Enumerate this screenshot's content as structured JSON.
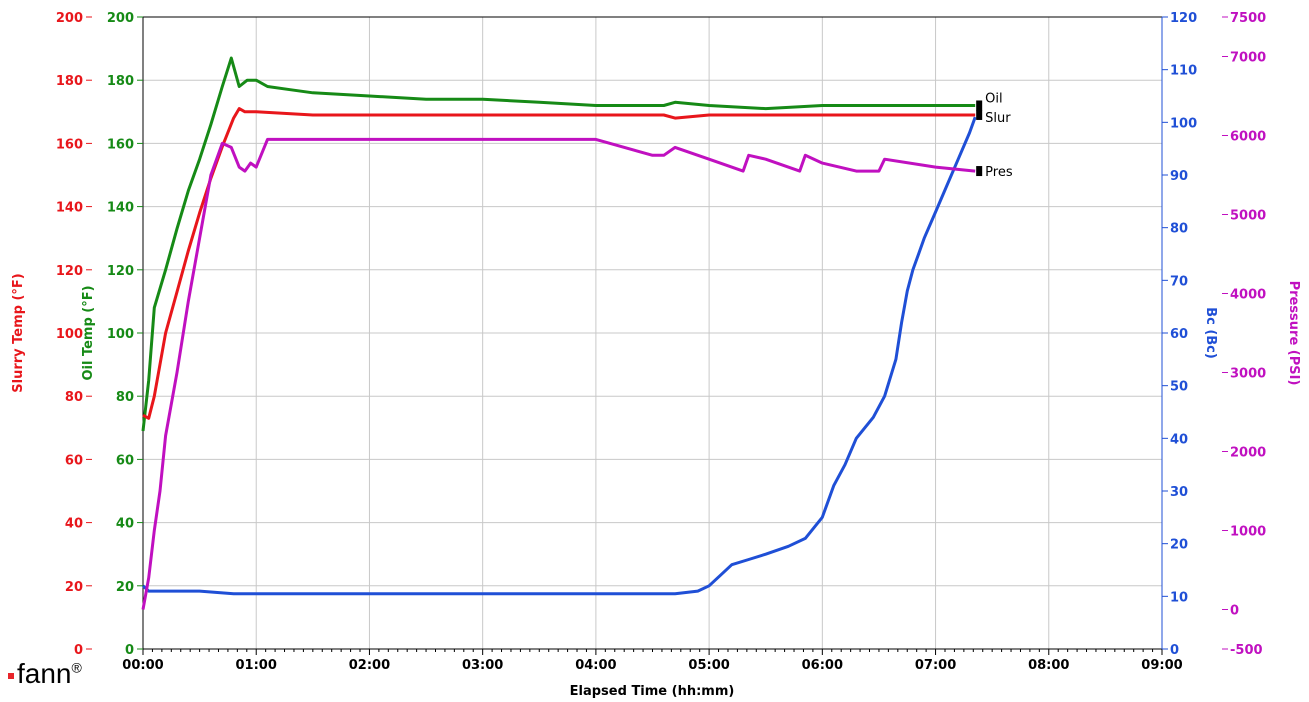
{
  "chart_data": {
    "type": "line",
    "xlabel": "Elapsed Time (hh:mm)",
    "x_ticks": [
      "00:00",
      "01:00",
      "02:00",
      "03:00",
      "04:00",
      "05:00",
      "06:00",
      "07:00",
      "08:00",
      "09:00"
    ],
    "xlim": [
      0,
      9
    ],
    "x_unit": "hours",
    "grid": true,
    "axes": [
      {
        "id": "slurry",
        "label": "Slurry Temp (°F)",
        "color": "#e8161b",
        "side": "left",
        "ticks": [
          "0",
          "20",
          "40",
          "60",
          "80",
          "100",
          "120",
          "140",
          "160",
          "180",
          "200"
        ],
        "ylim": [
          0,
          200
        ]
      },
      {
        "id": "oil",
        "label": "Oil Temp (°F)",
        "color": "#168a16",
        "side": "left",
        "ticks": [
          "0",
          "20",
          "40",
          "60",
          "80",
          "100",
          "120",
          "140",
          "160",
          "180",
          "200"
        ],
        "ylim": [
          0,
          200
        ]
      },
      {
        "id": "bc",
        "label": "Bc (Bc)",
        "color": "#1f4fd6",
        "side": "right",
        "ticks": [
          "0",
          "10",
          "20",
          "30",
          "40",
          "50",
          "60",
          "70",
          "80",
          "90",
          "100",
          "110",
          "120"
        ],
        "ylim": [
          0,
          120
        ]
      },
      {
        "id": "pressure",
        "label": "Pressure (PSI)",
        "color": "#c010c0",
        "side": "right",
        "ticks": [
          "-500",
          "0",
          "1000",
          "2000",
          "3000",
          "4000",
          "5000",
          "6000",
          "7000",
          "7500"
        ],
        "tick_values": [
          -500,
          0,
          1000,
          2000,
          3000,
          4000,
          5000,
          6000,
          7000,
          7500
        ],
        "ylim": [
          -500,
          7500
        ]
      }
    ],
    "series": [
      {
        "name": "Oil",
        "axis": "oil",
        "color": "#168a16",
        "x": [
          0,
          0.05,
          0.1,
          0.2,
          0.3,
          0.4,
          0.5,
          0.6,
          0.7,
          0.78,
          0.85,
          0.92,
          1.0,
          1.1,
          1.3,
          1.5,
          2.0,
          2.5,
          3.0,
          3.5,
          4.0,
          4.6,
          4.7,
          5.0,
          5.5,
          6.0,
          6.5,
          7.0,
          7.35
        ],
        "y": [
          69,
          85,
          108,
          120,
          133,
          145,
          155,
          166,
          178,
          187,
          178,
          180,
          180,
          178,
          177,
          176,
          175,
          174,
          174,
          173,
          172,
          172,
          173,
          172,
          171,
          172,
          172,
          172,
          172
        ]
      },
      {
        "name": "Slur",
        "axis": "slurry",
        "color": "#e8161b",
        "x": [
          0,
          0.05,
          0.1,
          0.2,
          0.3,
          0.4,
          0.5,
          0.6,
          0.7,
          0.8,
          0.85,
          0.9,
          1.0,
          1.5,
          2.0,
          3.0,
          4.0,
          4.6,
          4.7,
          5.0,
          6.0,
          7.0,
          7.35
        ],
        "y": [
          74,
          73,
          80,
          100,
          113,
          126,
          138,
          149,
          159,
          168,
          171,
          170,
          170,
          169,
          169,
          169,
          169,
          169,
          168,
          169,
          169,
          169,
          169
        ]
      },
      {
        "name": "",
        "axis": "bc",
        "color": "#1f4fd6",
        "x": [
          0,
          0.05,
          0.2,
          0.5,
          0.8,
          1.0,
          1.5,
          2.0,
          2.5,
          3.0,
          3.5,
          4.0,
          4.5,
          4.7,
          4.9,
          5.0,
          5.1,
          5.2,
          5.35,
          5.5,
          5.7,
          5.85,
          6.0,
          6.1,
          6.2,
          6.3,
          6.45,
          6.55,
          6.65,
          6.7,
          6.75,
          6.8,
          6.85,
          6.9,
          7.0,
          7.1,
          7.2,
          7.3,
          7.35
        ],
        "y": [
          12,
          11,
          11,
          11,
          10.5,
          10.5,
          10.5,
          10.5,
          10.5,
          10.5,
          10.5,
          10.5,
          10.5,
          10.5,
          11,
          12,
          14,
          16,
          17,
          18,
          19.5,
          21,
          25,
          31,
          35,
          40,
          44,
          48,
          55,
          62,
          68,
          72,
          75,
          78,
          83,
          88,
          93,
          98,
          101
        ]
      },
      {
        "name": "Pres",
        "axis": "pressure",
        "color": "#c010c0",
        "x": [
          0,
          0.05,
          0.1,
          0.15,
          0.2,
          0.3,
          0.4,
          0.5,
          0.6,
          0.7,
          0.78,
          0.85,
          0.9,
          0.95,
          1.0,
          1.1,
          1.5,
          2.0,
          3.0,
          3.5,
          4.0,
          4.5,
          4.6,
          4.7,
          5.0,
          5.3,
          5.35,
          5.5,
          5.8,
          5.85,
          6.0,
          6.3,
          6.5,
          6.55,
          7.0,
          7.35
        ],
        "y": [
          0,
          400,
          1000,
          1500,
          2200,
          3000,
          3900,
          4700,
          5500,
          5900,
          5850,
          5600,
          5550,
          5650,
          5600,
          5950,
          5950,
          5950,
          5950,
          5950,
          5950,
          5750,
          5750,
          5850,
          5700,
          5550,
          5750,
          5700,
          5550,
          5750,
          5650,
          5550,
          5550,
          5700,
          5600,
          5550
        ]
      }
    ],
    "end_labels": [
      {
        "text": "Oil",
        "series": "Oil"
      },
      {
        "text": "Slur",
        "series": "Slur"
      },
      {
        "text": "Pres",
        "series": "Pres"
      }
    ]
  },
  "logo": {
    "text": "fann",
    "mark": "®"
  }
}
